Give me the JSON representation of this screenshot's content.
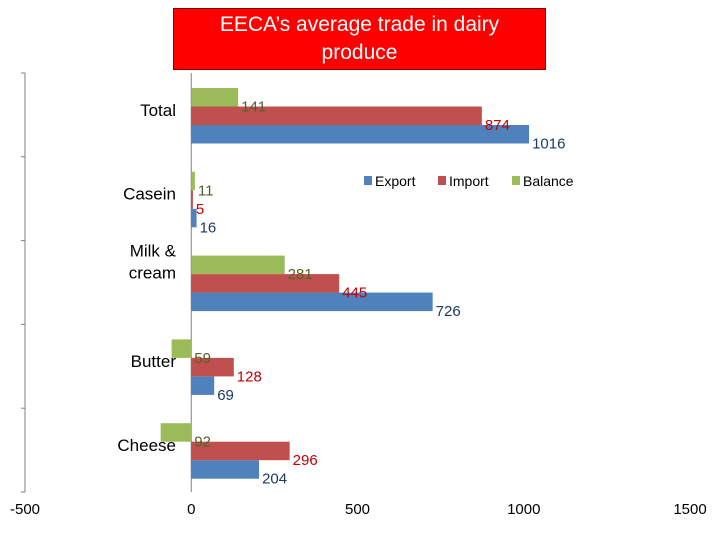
{
  "chart_data": {
    "type": "bar",
    "orientation": "horizontal",
    "title": "EECA’s average trade in dairy produce",
    "categories": [
      "Cheese",
      "Butter",
      "Milk & cream",
      "Casein",
      "Total"
    ],
    "category_display_lines": [
      [
        "Cheese"
      ],
      [
        "Butter"
      ],
      [
        "Milk &",
        "cream"
      ],
      [
        "Casein"
      ],
      [
        "Total"
      ]
    ],
    "series": [
      {
        "name": "Export",
        "values": [
          204,
          69,
          726,
          16,
          1016
        ],
        "labels": [
          "204",
          "69",
          "726",
          "16",
          "1016"
        ]
      },
      {
        "name": "Import",
        "values": [
          296,
          128,
          445,
          5,
          874
        ],
        "labels": [
          "296",
          "128",
          "445",
          "5",
          "874"
        ]
      },
      {
        "name": "Balance",
        "values": [
          -92,
          -59,
          281,
          11,
          141
        ],
        "labels": [
          "92",
          "59",
          "281",
          "11",
          "141"
        ]
      }
    ],
    "xlim": [
      -500,
      1500
    ],
    "x_ticks": [
      -500,
      0,
      500,
      1000,
      1500
    ],
    "x_tick_labels": [
      "-500",
      "0",
      "500",
      "1000",
      "1500"
    ],
    "xlabel": "",
    "ylabel": "",
    "legend_position": "right",
    "grid": false
  },
  "colors": {
    "export": "#4f81bd",
    "import": "#c0504d",
    "balance": "#9bbb59",
    "export_label": "#1f3864",
    "import_label": "#c00000",
    "balance_label": "#4f6228",
    "title_bg": "#ff0000",
    "title_text": "#ffffff",
    "axis": "#808080"
  }
}
